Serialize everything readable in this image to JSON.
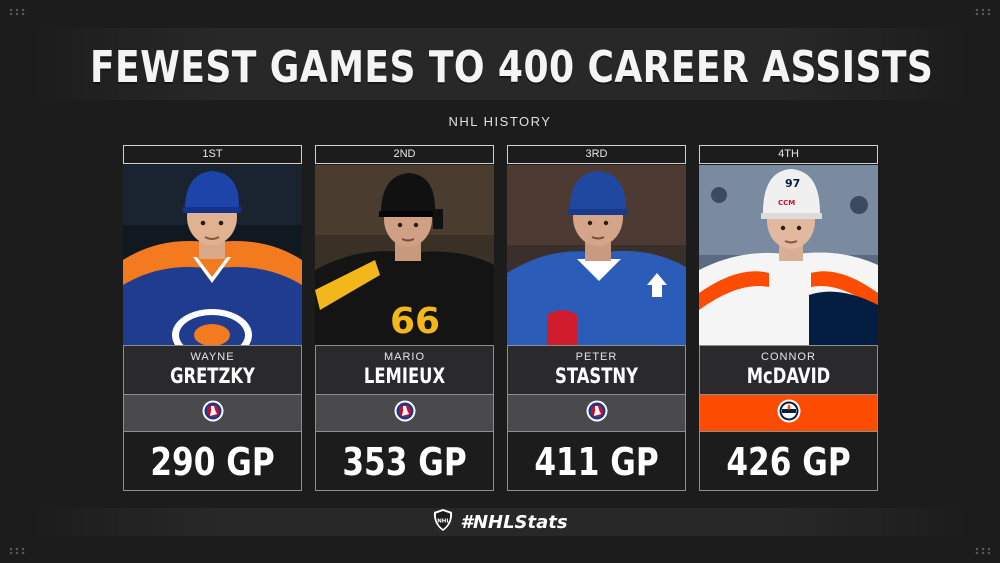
{
  "title": "FEWEST GAMES TO 400 CAREER ASSISTS",
  "subtitle": "NHL HISTORY",
  "players": [
    {
      "rank": "1ST",
      "first_name": "WAYNE",
      "last_name": "GRETZKY",
      "gp": "290 GP",
      "jersey_color": "#1f3c8f",
      "shoulder_color": "#f47a20",
      "helmet_color": "#1d44a8",
      "logo": "hall-of-fame-logo"
    },
    {
      "rank": "2ND",
      "first_name": "MARIO",
      "last_name": "LEMIEUX",
      "gp": "353 GP",
      "jersey_color": "#141414",
      "shoulder_color": "#f2b71b",
      "helmet_color": "#111111",
      "logo": "hall-of-fame-logo"
    },
    {
      "rank": "3RD",
      "first_name": "PETER",
      "last_name": "STASTNY",
      "gp": "411 GP",
      "jersey_color": "#2b5db8",
      "shoulder_color": "#ffffff",
      "helmet_color": "#2048a0",
      "logo": "hall-of-fame-logo"
    },
    {
      "rank": "4TH",
      "first_name": "CONNOR",
      "last_name": "McDAVID",
      "gp": "426 GP",
      "jersey_color": "#f5f5f5",
      "shoulder_color": "#fc4c02",
      "helmet_color": "#f0f0f0",
      "logo": "oilers-logo",
      "helmet_number": "97",
      "helmet_brand": "CCM"
    }
  ],
  "footer": {
    "hashtag": "#NHLStats",
    "logo": "nhl-shield-logo"
  },
  "colors": {
    "background": "#1c1c1d",
    "oilers_orange": "#fc4c02",
    "logo_bar_gray": "#4a4a4c"
  }
}
